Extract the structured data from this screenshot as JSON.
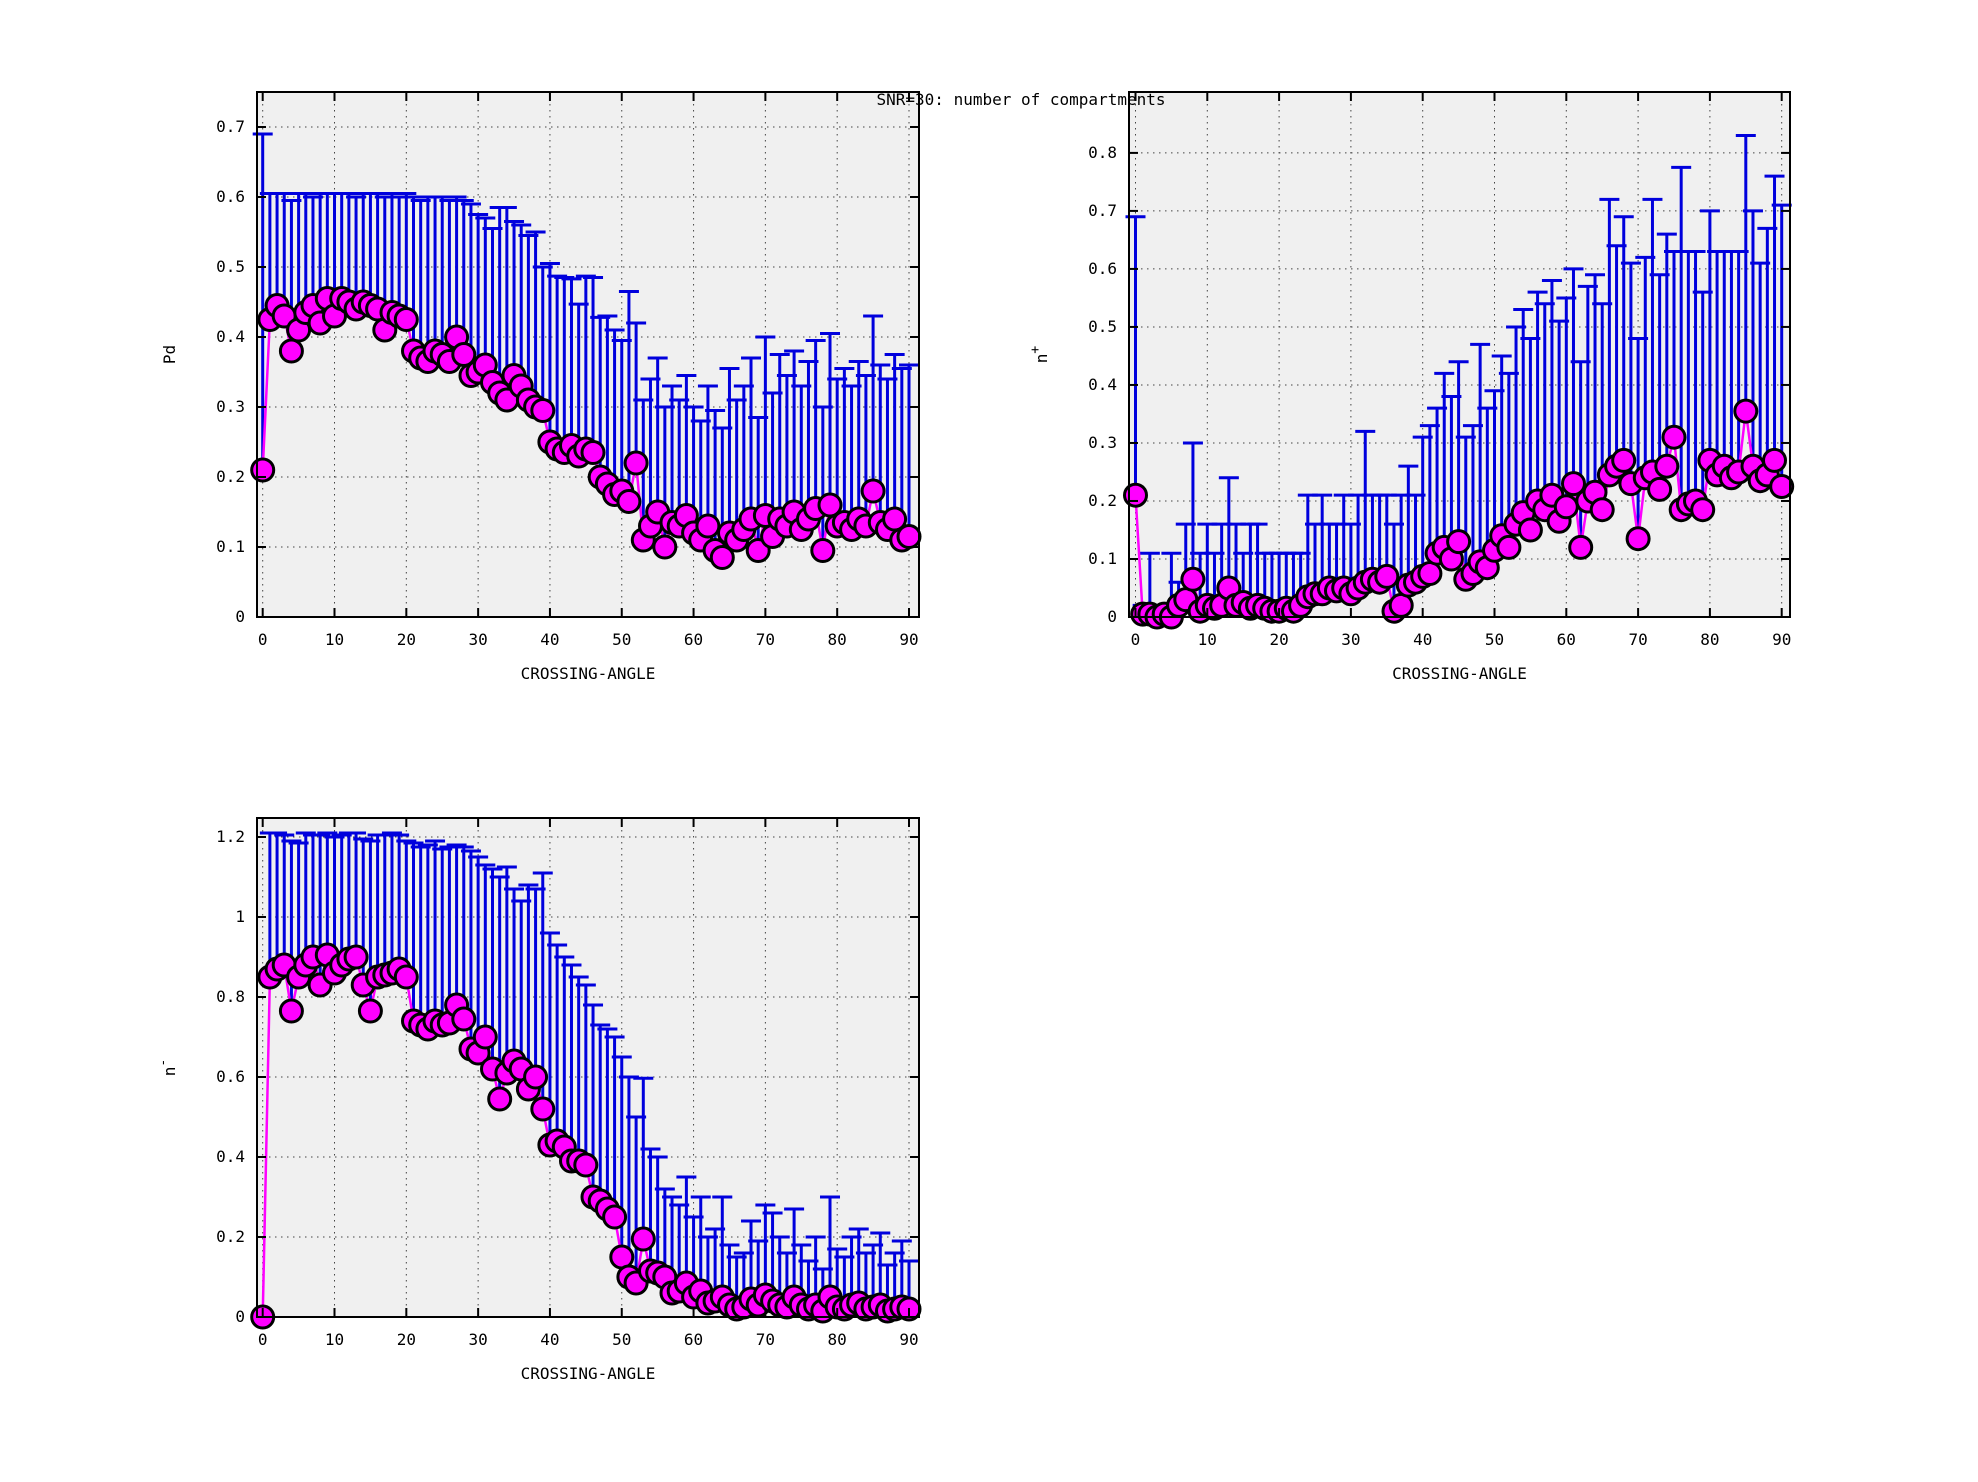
{
  "title": "SNR=30: number of compartments",
  "colors": {
    "page_bg": "#ffffff",
    "plot_bg": "#f0f0f0",
    "axis": "#000000",
    "grid": "#444444",
    "error_bar": "#0000dd",
    "marker_fill": "#ff00ff",
    "marker_edge": "#000000",
    "line": "#ff00ff"
  },
  "crossing_angle_x": [
    0,
    1,
    2,
    3,
    4,
    5,
    6,
    7,
    8,
    9,
    10,
    11,
    12,
    13,
    14,
    15,
    16,
    17,
    18,
    19,
    20,
    21,
    22,
    23,
    24,
    25,
    26,
    27,
    28,
    29,
    30,
    31,
    32,
    33,
    34,
    35,
    36,
    37,
    38,
    39,
    40,
    41,
    42,
    43,
    44,
    45,
    46,
    47,
    48,
    49,
    50,
    51,
    52,
    53,
    54,
    55,
    56,
    57,
    58,
    59,
    60,
    61,
    62,
    63,
    64,
    65,
    66,
    67,
    68,
    69,
    70,
    71,
    72,
    73,
    74,
    75,
    76,
    77,
    78,
    79,
    80,
    81,
    82,
    83,
    84,
    85,
    86,
    87,
    88,
    89,
    90
  ],
  "chart_data": [
    {
      "id": "pd",
      "type": "scatter",
      "title": "",
      "xlabel": "CROSSING-ANGLE",
      "ylabel": "Pd",
      "ylabel_sup": "",
      "xlim": [
        0,
        90
      ],
      "ylim": [
        0,
        0.75
      ],
      "xticks": [
        0,
        10,
        20,
        30,
        40,
        50,
        60,
        70,
        80,
        90
      ],
      "yticks": [
        0,
        0.1,
        0.2,
        0.3,
        0.4,
        0.5,
        0.6,
        0.7
      ],
      "grid": true,
      "legend": "none",
      "y": [
        0.21,
        0.425,
        0.445,
        0.43,
        0.38,
        0.41,
        0.435,
        0.445,
        0.42,
        0.455,
        0.43,
        0.455,
        0.45,
        0.44,
        0.45,
        0.445,
        0.44,
        0.41,
        0.435,
        0.43,
        0.425,
        0.38,
        0.37,
        0.365,
        0.38,
        0.375,
        0.365,
        0.4,
        0.375,
        0.345,
        0.35,
        0.36,
        0.335,
        0.32,
        0.31,
        0.345,
        0.33,
        0.31,
        0.3,
        0.295,
        0.25,
        0.24,
        0.235,
        0.245,
        0.23,
        0.24,
        0.235,
        0.2,
        0.19,
        0.175,
        0.18,
        0.165,
        0.22,
        0.11,
        0.13,
        0.15,
        0.1,
        0.135,
        0.13,
        0.145,
        0.12,
        0.11,
        0.13,
        0.095,
        0.085,
        0.12,
        0.11,
        0.125,
        0.14,
        0.095,
        0.145,
        0.115,
        0.14,
        0.13,
        0.15,
        0.125,
        0.14,
        0.155,
        0.095,
        0.16,
        0.13,
        0.135,
        0.125,
        0.14,
        0.13,
        0.18,
        0.135,
        0.125,
        0.14,
        0.11,
        0.115
      ],
      "y_upper": [
        0.69,
        0.605,
        0.605,
        0.605,
        0.595,
        0.605,
        0.605,
        0.6,
        0.605,
        0.605,
        0.605,
        0.605,
        0.605,
        0.6,
        0.605,
        0.605,
        0.605,
        0.6,
        0.605,
        0.6,
        0.605,
        0.6,
        0.595,
        0.6,
        0.6,
        0.6,
        0.595,
        0.6,
        0.595,
        0.59,
        0.575,
        0.57,
        0.555,
        0.585,
        0.585,
        0.565,
        0.56,
        0.545,
        0.55,
        0.5,
        0.505,
        0.487,
        0.485,
        0.483,
        0.447,
        0.487,
        0.485,
        0.428,
        0.43,
        0.41,
        0.395,
        0.465,
        0.42,
        0.31,
        0.34,
        0.37,
        0.3,
        0.33,
        0.31,
        0.345,
        0.3,
        0.28,
        0.33,
        0.295,
        0.27,
        0.355,
        0.31,
        0.33,
        0.37,
        0.285,
        0.4,
        0.32,
        0.375,
        0.345,
        0.38,
        0.33,
        0.365,
        0.395,
        0.3,
        0.405,
        0.34,
        0.355,
        0.33,
        0.365,
        0.345,
        0.43,
        0.36,
        0.34,
        0.375,
        0.355,
        0.36
      ]
    },
    {
      "id": "n-plus",
      "type": "scatter",
      "title": "",
      "xlabel": "CROSSING-ANGLE",
      "ylabel": "n",
      "ylabel_sup": "+",
      "xlim": [
        0,
        90
      ],
      "ylim": [
        0,
        0.905
      ],
      "xticks": [
        0,
        10,
        20,
        30,
        40,
        50,
        60,
        70,
        80,
        90
      ],
      "yticks": [
        0,
        0.1,
        0.2,
        0.3,
        0.4,
        0.5,
        0.6,
        0.7,
        0.8
      ],
      "grid": true,
      "legend": "none",
      "y": [
        0.21,
        0.005,
        0.005,
        0.0,
        0.005,
        0.0,
        0.02,
        0.03,
        0.065,
        0.01,
        0.02,
        0.015,
        0.02,
        0.05,
        0.02,
        0.025,
        0.015,
        0.02,
        0.015,
        0.01,
        0.01,
        0.015,
        0.01,
        0.02,
        0.035,
        0.04,
        0.04,
        0.05,
        0.045,
        0.05,
        0.04,
        0.05,
        0.06,
        0.065,
        0.06,
        0.07,
        0.01,
        0.02,
        0.055,
        0.06,
        0.07,
        0.075,
        0.11,
        0.12,
        0.1,
        0.13,
        0.065,
        0.075,
        0.095,
        0.085,
        0.115,
        0.14,
        0.12,
        0.16,
        0.18,
        0.15,
        0.2,
        0.185,
        0.21,
        0.165,
        0.19,
        0.23,
        0.12,
        0.2,
        0.215,
        0.185,
        0.245,
        0.26,
        0.27,
        0.23,
        0.135,
        0.24,
        0.25,
        0.22,
        0.26,
        0.31,
        0.185,
        0.195,
        0.2,
        0.185,
        0.27,
        0.245,
        0.26,
        0.24,
        0.25,
        0.355,
        0.26,
        0.235,
        0.245,
        0.27,
        0.225
      ],
      "y_upper": [
        0.69,
        0.02,
        0.11,
        0.01,
        0.02,
        0.11,
        0.06,
        0.16,
        0.3,
        0.11,
        0.16,
        0.11,
        0.16,
        0.24,
        0.16,
        0.11,
        0.16,
        0.16,
        0.11,
        0.11,
        0.11,
        0.11,
        0.11,
        0.11,
        0.21,
        0.16,
        0.21,
        0.16,
        0.16,
        0.21,
        0.16,
        0.21,
        0.32,
        0.21,
        0.21,
        0.21,
        0.16,
        0.21,
        0.26,
        0.21,
        0.31,
        0.33,
        0.36,
        0.42,
        0.38,
        0.44,
        0.31,
        0.33,
        0.47,
        0.36,
        0.39,
        0.45,
        0.42,
        0.5,
        0.53,
        0.48,
        0.56,
        0.54,
        0.58,
        0.51,
        0.55,
        0.6,
        0.44,
        0.57,
        0.59,
        0.54,
        0.72,
        0.64,
        0.69,
        0.61,
        0.48,
        0.62,
        0.72,
        0.59,
        0.66,
        0.63,
        0.775,
        0.63,
        0.63,
        0.56,
        0.7,
        0.63,
        0.63,
        0.63,
        0.63,
        0.83,
        0.7,
        0.61,
        0.67,
        0.76,
        0.71
      ]
    },
    {
      "id": "n-minus",
      "type": "scatter",
      "title": "",
      "xlabel": "CROSSING-ANGLE",
      "ylabel": "n",
      "ylabel_sup": "-",
      "xlim": [
        0,
        90
      ],
      "ylim": [
        0,
        1.2475
      ],
      "xticks": [
        0,
        10,
        20,
        30,
        40,
        50,
        60,
        70,
        80,
        90
      ],
      "yticks": [
        0,
        0.2,
        0.4,
        0.6,
        0.8,
        1,
        1.2
      ],
      "grid": true,
      "legend": "none",
      "y": [
        0.0,
        0.85,
        0.87,
        0.88,
        0.765,
        0.85,
        0.88,
        0.9,
        0.83,
        0.905,
        0.86,
        0.88,
        0.895,
        0.9,
        0.83,
        0.765,
        0.85,
        0.855,
        0.86,
        0.87,
        0.85,
        0.74,
        0.73,
        0.72,
        0.74,
        0.73,
        0.735,
        0.78,
        0.745,
        0.67,
        0.66,
        0.7,
        0.62,
        0.545,
        0.61,
        0.64,
        0.62,
        0.57,
        0.6,
        0.52,
        0.43,
        0.44,
        0.425,
        0.39,
        0.39,
        0.38,
        0.3,
        0.29,
        0.27,
        0.25,
        0.15,
        0.1,
        0.085,
        0.195,
        0.115,
        0.11,
        0.1,
        0.06,
        0.065,
        0.085,
        0.05,
        0.065,
        0.035,
        0.04,
        0.05,
        0.03,
        0.02,
        0.025,
        0.045,
        0.03,
        0.055,
        0.04,
        0.03,
        0.025,
        0.05,
        0.03,
        0.02,
        0.03,
        0.015,
        0.05,
        0.025,
        0.02,
        0.03,
        0.035,
        0.02,
        0.025,
        0.03,
        0.015,
        0.02,
        0.025,
        0.02
      ],
      "y_upper": [
        0.0,
        1.21,
        1.21,
        1.205,
        1.19,
        1.185,
        1.21,
        1.205,
        1.205,
        1.21,
        1.2,
        1.205,
        1.21,
        1.21,
        1.195,
        1.19,
        1.205,
        1.205,
        1.21,
        1.205,
        1.19,
        1.185,
        1.175,
        1.18,
        1.19,
        1.17,
        1.175,
        1.18,
        1.175,
        1.165,
        1.15,
        1.13,
        1.12,
        1.1,
        1.125,
        1.07,
        1.04,
        1.08,
        1.07,
        1.11,
        0.96,
        0.93,
        0.9,
        0.88,
        0.85,
        0.83,
        0.78,
        0.73,
        0.72,
        0.7,
        0.65,
        0.6,
        0.5,
        0.597,
        0.42,
        0.4,
        0.32,
        0.3,
        0.28,
        0.35,
        0.25,
        0.3,
        0.2,
        0.22,
        0.3,
        0.18,
        0.15,
        0.16,
        0.24,
        0.19,
        0.28,
        0.26,
        0.2,
        0.16,
        0.27,
        0.18,
        0.14,
        0.2,
        0.12,
        0.3,
        0.17,
        0.15,
        0.2,
        0.22,
        0.16,
        0.18,
        0.21,
        0.13,
        0.16,
        0.19,
        0.14
      ]
    }
  ]
}
